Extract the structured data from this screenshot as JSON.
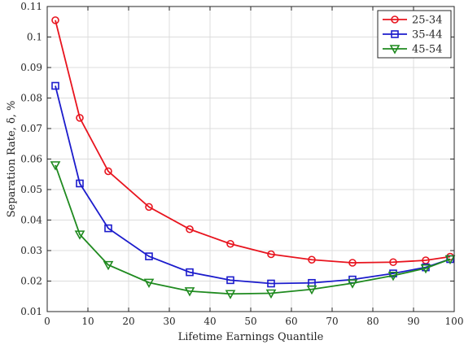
{
  "chart_data": {
    "type": "line",
    "title": "",
    "xlabel": "Lifetime Earnings Quantile",
    "ylabel": "Separation Rate, δ, %",
    "xlim": [
      0,
      100
    ],
    "ylim": [
      0.01,
      0.11
    ],
    "xticks": [
      0,
      10,
      20,
      30,
      40,
      50,
      60,
      70,
      80,
      90,
      100
    ],
    "xtick_labels": [
      "0",
      "10",
      "20",
      "30",
      "40",
      "50",
      "60",
      "70",
      "80",
      "90",
      "100"
    ],
    "yticks": [
      0.01,
      0.02,
      0.03,
      0.04,
      0.05,
      0.06,
      0.07,
      0.08,
      0.09,
      0.1,
      0.11
    ],
    "ytick_labels": [
      "0.01",
      "0.02",
      "0.03",
      "0.04",
      "0.05",
      "0.06",
      "0.07",
      "0.08",
      "0.09",
      "0.1",
      "0.11"
    ],
    "grid": true,
    "legend_position": "top-right",
    "x": [
      2,
      8,
      15,
      25,
      35,
      45,
      55,
      65,
      75,
      85,
      93,
      99
    ],
    "series": [
      {
        "name": "25-34",
        "color": "#e8141e",
        "marker": "circle",
        "values": [
          0.1055,
          0.0735,
          0.056,
          0.0443,
          0.037,
          0.0322,
          0.0288,
          0.027,
          0.026,
          0.0262,
          0.0268,
          0.028
        ]
      },
      {
        "name": "35-44",
        "color": "#1c1ccc",
        "marker": "square",
        "values": [
          0.084,
          0.052,
          0.0373,
          0.0281,
          0.0229,
          0.0203,
          0.0192,
          0.0194,
          0.0205,
          0.0225,
          0.0245,
          0.0272
        ]
      },
      {
        "name": "45-54",
        "color": "#1f8a1f",
        "marker": "triangle-down",
        "values": [
          0.058,
          0.0353,
          0.0253,
          0.0195,
          0.0167,
          0.0158,
          0.016,
          0.0173,
          0.0193,
          0.0218,
          0.0242,
          0.0272
        ]
      }
    ]
  }
}
